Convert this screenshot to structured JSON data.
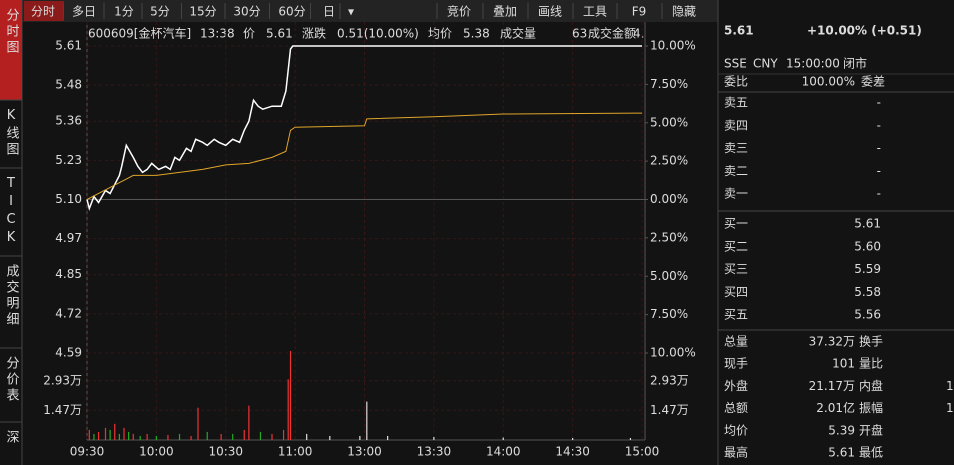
{
  "toolbar": {
    "periods": [
      "分时",
      "多日",
      "1分",
      "5分",
      "15分",
      "30分",
      "60分",
      "日",
      "▾"
    ],
    "tools": [
      "竞价",
      "叠加",
      "画线",
      "工具",
      "F9",
      "隐藏"
    ]
  },
  "side_tabs": [
    "分时图",
    "K线图",
    "TICK",
    "成交明细",
    "分价表",
    "深"
  ],
  "info": {
    "code": "600609[金杯汽车]",
    "time": "13:38",
    "price_label": "价",
    "price": "5.61",
    "change_label": "涨跌",
    "change": "0.51(10.00%)",
    "avg_label": "均价",
    "avg": "5.38",
    "vol_label": "成交量",
    "vol": "63",
    "amount_label": "成交金额",
    "amount": "4."
  },
  "chart_data": {
    "type": "line",
    "xlim": [
      0,
      240
    ],
    "xticks": [
      {
        "value": 0,
        "label": "09:30"
      },
      {
        "value": 30,
        "label": "10:00"
      },
      {
        "value": 60,
        "label": "10:30"
      },
      {
        "value": 90,
        "label": "11:00"
      },
      {
        "value": 120,
        "label": "13:00"
      },
      {
        "value": 150,
        "label": "13:30"
      },
      {
        "value": 180,
        "label": "14:00"
      },
      {
        "value": 210,
        "label": "14:30"
      },
      {
        "value": 240,
        "label": "15:00"
      }
    ],
    "ylim": [
      4.59,
      5.61
    ],
    "yticks": [
      {
        "value": 5.61,
        "label": "5.61"
      },
      {
        "value": 5.48,
        "label": "5.48"
      },
      {
        "value": 5.36,
        "label": "5.36"
      },
      {
        "value": 5.23,
        "label": "5.23"
      },
      {
        "value": 5.1,
        "label": "5.10"
      },
      {
        "value": 4.97,
        "label": "4.97"
      },
      {
        "value": 4.85,
        "label": "4.85"
      },
      {
        "value": 4.72,
        "label": "4.72"
      },
      {
        "value": 4.59,
        "label": "4.59"
      }
    ],
    "y2lim": [
      -10,
      10
    ],
    "y2ticks": [
      {
        "value": 10,
        "label": "10.00%"
      },
      {
        "value": 7.5,
        "label": "7.50%"
      },
      {
        "value": 5,
        "label": "5.00%"
      },
      {
        "value": 2.5,
        "label": "2.50%"
      },
      {
        "value": 0,
        "label": "0.00%"
      },
      {
        "value": -2.5,
        "label": "2.50%"
      },
      {
        "value": -5,
        "label": "5.00%"
      },
      {
        "value": -7.5,
        "label": "7.50%"
      },
      {
        "value": -10,
        "label": "10.00%"
      }
    ],
    "series": [
      {
        "color": "#ffffff",
        "x": [
          0,
          1,
          3,
          5,
          8,
          10,
          12,
          14,
          15,
          17,
          20,
          22,
          24,
          26,
          28,
          31,
          34,
          36,
          38,
          40,
          43,
          45,
          47,
          50,
          52,
          55,
          57,
          60,
          63,
          66,
          68,
          70,
          72,
          74,
          76,
          80,
          84,
          86,
          88,
          89,
          240
        ],
        "values": [
          5.1,
          5.07,
          5.11,
          5.09,
          5.13,
          5.12,
          5.15,
          5.18,
          5.21,
          5.28,
          5.24,
          5.21,
          5.19,
          5.2,
          5.22,
          5.2,
          5.21,
          5.2,
          5.24,
          5.23,
          5.27,
          5.26,
          5.3,
          5.29,
          5.28,
          5.3,
          5.29,
          5.28,
          5.3,
          5.29,
          5.33,
          5.36,
          5.43,
          5.41,
          5.4,
          5.41,
          5.41,
          5.46,
          5.6,
          5.61,
          5.61
        ]
      },
      {
        "color": "#e0a52a",
        "x": [
          0,
          5,
          10,
          15,
          20,
          30,
          40,
          50,
          60,
          70,
          80,
          86,
          88,
          90,
          120,
          121,
          150,
          180,
          240
        ],
        "values": [
          5.1,
          5.12,
          5.14,
          5.16,
          5.18,
          5.18,
          5.19,
          5.2,
          5.215,
          5.22,
          5.24,
          5.26,
          5.33,
          5.34,
          5.345,
          5.368,
          5.375,
          5.384,
          5.387
        ]
      }
    ],
    "volume": {
      "ylim": [
        0,
        48000
      ],
      "yticks": [
        {
          "value": 29300,
          "label": "2.93万"
        },
        {
          "value": 14700,
          "label": "1.47万"
        }
      ],
      "x": [
        1,
        3,
        5,
        8,
        10,
        12,
        14,
        16,
        18,
        20,
        23,
        26,
        30,
        35,
        40,
        45,
        48,
        52,
        58,
        63,
        68,
        70,
        75,
        80,
        85,
        87,
        88,
        95,
        105,
        118,
        121,
        130,
        150,
        180,
        210,
        235
      ],
      "values": [
        5000,
        3000,
        4000,
        6000,
        5000,
        8000,
        3000,
        6000,
        4000,
        3000,
        2000,
        3000,
        2000,
        2500,
        3000,
        2000,
        16000,
        4000,
        3000,
        3000,
        5000,
        17000,
        4000,
        3000,
        5000,
        30000,
        44000,
        3000,
        2000,
        2000,
        19000,
        2000,
        1500,
        1200,
        1000,
        1000
      ],
      "colors": [
        "#e33",
        "#2a2",
        "#e33",
        "#e33",
        "#2a2",
        "#e33",
        "#2a2",
        "#e33",
        "#2a2",
        "#e33",
        "#2a2",
        "#e33",
        "#2a2",
        "#e33",
        "#2a2",
        "#e33",
        "#e33",
        "#2a2",
        "#e33",
        "#2a2",
        "#e33",
        "#e33",
        "#2a2",
        "#e33",
        "#e33",
        "#e33",
        "#e33",
        "#ddd",
        "#ddd",
        "#ddd",
        "#ddd",
        "#ddd",
        "#ddd",
        "#ddd",
        "#ddd",
        "#ddd"
      ]
    }
  },
  "quote": {
    "price": "5.61",
    "change": "+10.00% (+0.51)",
    "exchange": "SSE",
    "currency": "CNY",
    "time": "15:00:00",
    "status": "闭市",
    "ratio_label": "委比",
    "ratio": "100.00%",
    "diff_label": "委差",
    "asks": [
      [
        "卖五",
        "-"
      ],
      [
        "卖四",
        "-"
      ],
      [
        "卖三",
        "-"
      ],
      [
        "卖二",
        "-"
      ],
      [
        "卖一",
        "-"
      ]
    ],
    "bids": [
      [
        "买一",
        "5.61"
      ],
      [
        "买二",
        "5.60"
      ],
      [
        "买三",
        "5.59"
      ],
      [
        "买四",
        "5.58"
      ],
      [
        "买五",
        "5.56"
      ]
    ],
    "stats": [
      [
        "总量",
        "37.32万",
        "换手"
      ],
      [
        "现手",
        "101",
        "量比"
      ],
      [
        "外盘",
        "21.17万",
        "内盘",
        "1"
      ],
      [
        "总额",
        "2.01亿",
        "振幅",
        "1"
      ],
      [
        "均价",
        "5.39",
        "开盘"
      ],
      [
        "最高",
        "5.61",
        "最低"
      ]
    ]
  }
}
